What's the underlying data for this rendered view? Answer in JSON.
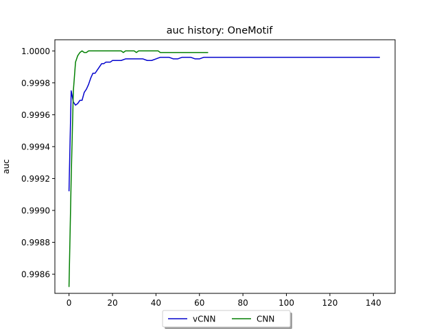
{
  "chart_data": {
    "type": "line",
    "title": "auc history:  OneMotif",
    "xlabel": "",
    "ylabel": "auc",
    "xlim": [
      -6.5,
      150
    ],
    "ylim": [
      0.99848,
      1.00007
    ],
    "xticks": [
      0,
      20,
      40,
      60,
      80,
      100,
      120,
      140
    ],
    "yticks": [
      0.9986,
      0.9988,
      0.999,
      0.9992,
      0.9994,
      0.9996,
      0.9998,
      1.0
    ],
    "ytick_labels": [
      "0.9986",
      "0.9988",
      "0.9990",
      "0.9992",
      "0.9994",
      "0.9996",
      "0.9998",
      "1.0000"
    ],
    "grid": false,
    "legend_position": "bottom-center (below axes, 2 columns, shadowed)",
    "series": [
      {
        "name": "vCNN",
        "color": "#0000cc",
        "x": [
          0,
          1,
          2,
          3,
          4,
          5,
          6,
          7,
          8,
          9,
          10,
          11,
          12,
          13,
          14,
          15,
          16,
          17,
          18,
          19,
          20,
          22,
          24,
          26,
          28,
          30,
          32,
          34,
          36,
          38,
          40,
          42,
          44,
          46,
          48,
          50,
          52,
          54,
          56,
          58,
          60,
          62,
          64,
          80,
          100,
          120,
          143
        ],
        "y": [
          0.99912,
          0.99975,
          0.99968,
          0.99966,
          0.99967,
          0.99969,
          0.99969,
          0.99974,
          0.99976,
          0.99979,
          0.99983,
          0.99986,
          0.99986,
          0.99988,
          0.9999,
          0.99992,
          0.99992,
          0.99993,
          0.99993,
          0.99993,
          0.99994,
          0.99994,
          0.99994,
          0.99995,
          0.99995,
          0.99995,
          0.99995,
          0.99995,
          0.99994,
          0.99994,
          0.99995,
          0.99996,
          0.99996,
          0.99996,
          0.99995,
          0.99995,
          0.99996,
          0.99996,
          0.99996,
          0.99995,
          0.99995,
          0.99996,
          0.99996,
          0.99996,
          0.99996,
          0.99996,
          0.99996
        ]
      },
      {
        "name": "CNN",
        "color": "#007f00",
        "x": [
          0,
          1,
          2,
          3,
          4,
          5,
          6,
          7,
          8,
          9,
          10,
          12,
          14,
          16,
          18,
          20,
          22,
          24,
          25,
          26,
          28,
          30,
          31,
          32,
          34,
          36,
          38,
          40,
          41,
          42,
          44,
          48,
          52,
          56,
          60,
          64
        ],
        "y": [
          0.99852,
          0.9992,
          0.99975,
          0.99993,
          0.99997,
          0.99999,
          1.0,
          0.99999,
          0.99999,
          1.0,
          1.0,
          1.0,
          1.0,
          1.0,
          1.0,
          1.0,
          1.0,
          1.0,
          0.99999,
          1.0,
          1.0,
          1.0,
          0.99999,
          1.0,
          1.0,
          1.0,
          1.0,
          1.0,
          1.0,
          0.99999,
          0.99999,
          0.99999,
          0.99999,
          0.99999,
          0.99999,
          0.99999
        ]
      }
    ]
  }
}
